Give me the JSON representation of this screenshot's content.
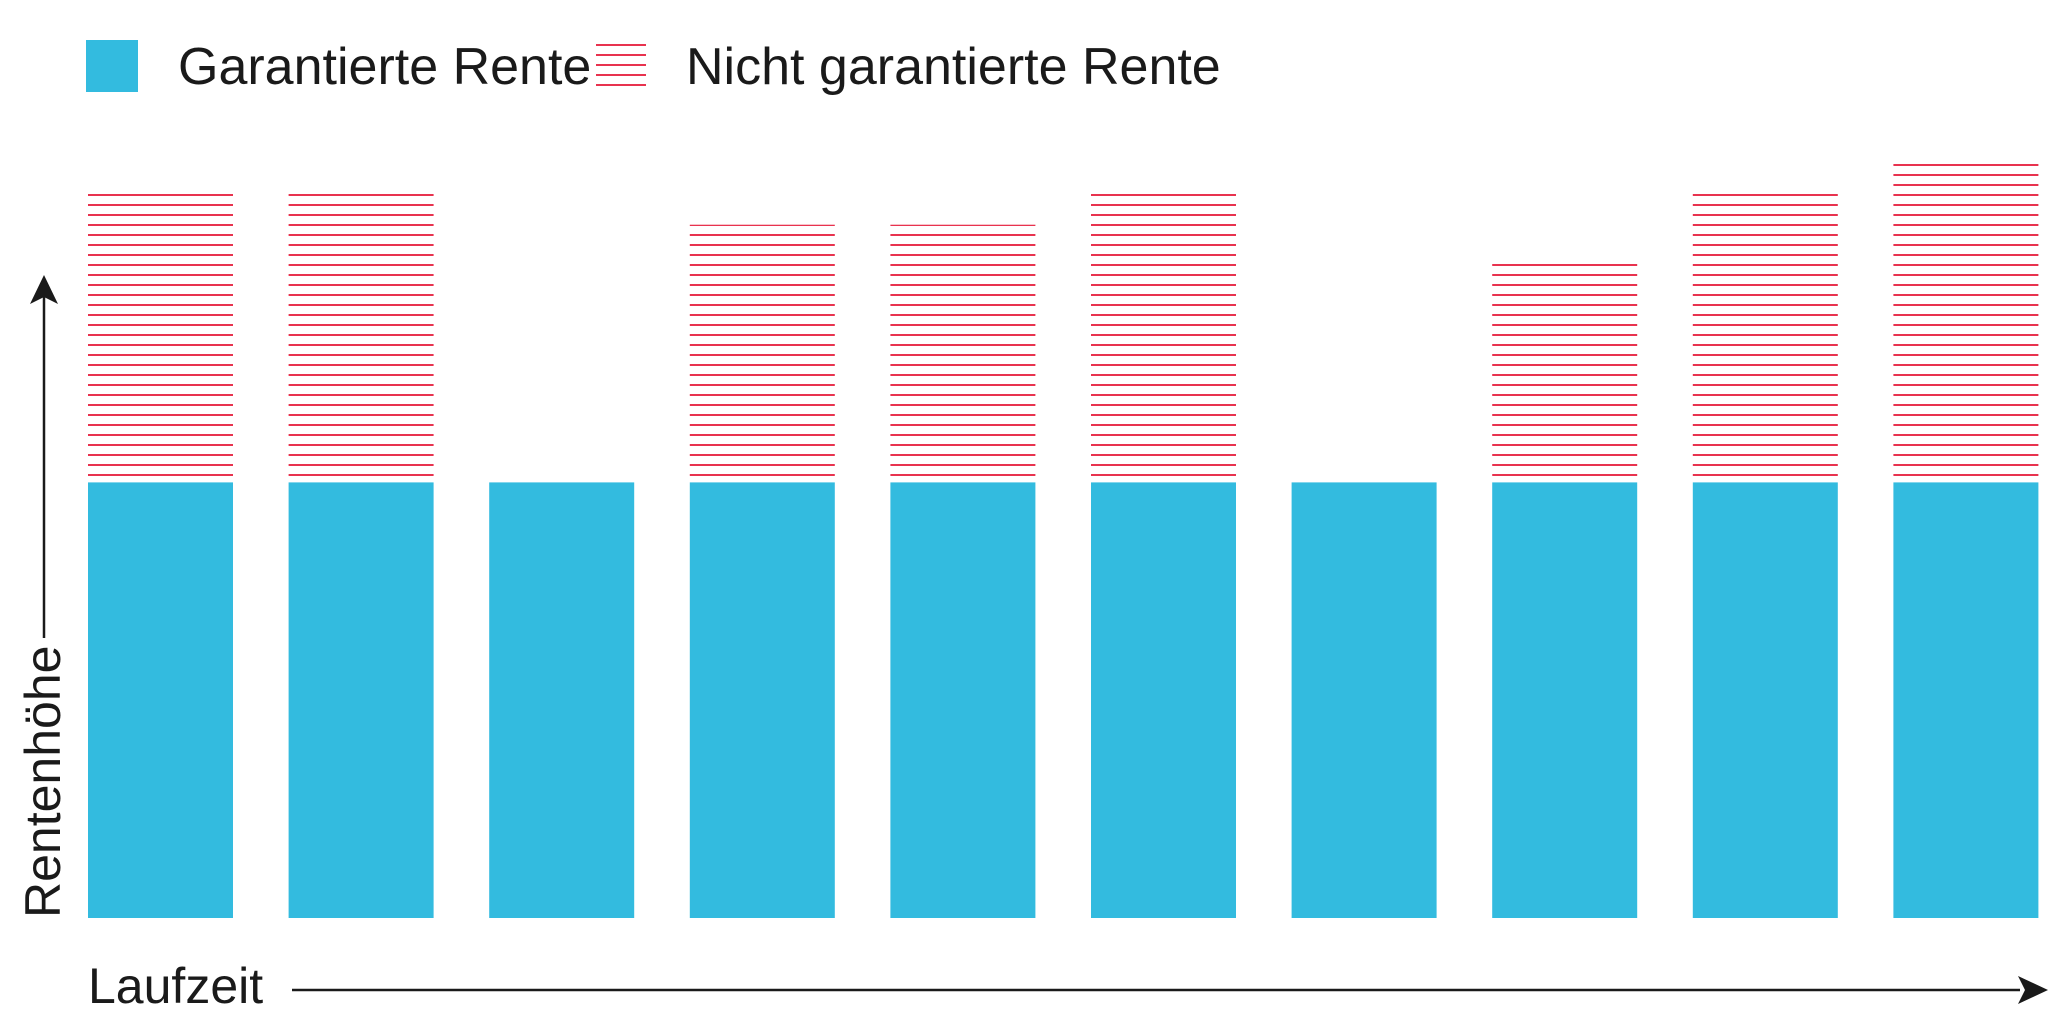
{
  "colors": {
    "guaranteed": "#33bbdf",
    "non_guaranteed_stripe": "#e8334f",
    "axis": "#1a1a1a"
  },
  "legend": {
    "guaranteed_label": "Garantierte Rente",
    "non_guaranteed_label": "Nicht garantierte Rente"
  },
  "chart_data": {
    "type": "bar",
    "stacked": true,
    "xlabel": "Laufzeit",
    "ylabel": "Rentenhöhe",
    "axis_ticks": false,
    "ylim": [
      0,
      100
    ],
    "legend_position": "top-left",
    "categories": [
      "",
      "",
      "",
      "",
      "",
      "",
      "",
      "",
      "",
      ""
    ],
    "series": [
      {
        "name": "Garantierte Rente",
        "pattern": "solid",
        "values": [
          60,
          60,
          60,
          60,
          60,
          60,
          60,
          60,
          60,
          60
        ]
      },
      {
        "name": "Nicht garantierte Rente",
        "pattern": "horizontal-stripes",
        "values": [
          40,
          40,
          0,
          35.5,
          35.5,
          40,
          0,
          31,
          40,
          44.5
        ]
      }
    ]
  }
}
